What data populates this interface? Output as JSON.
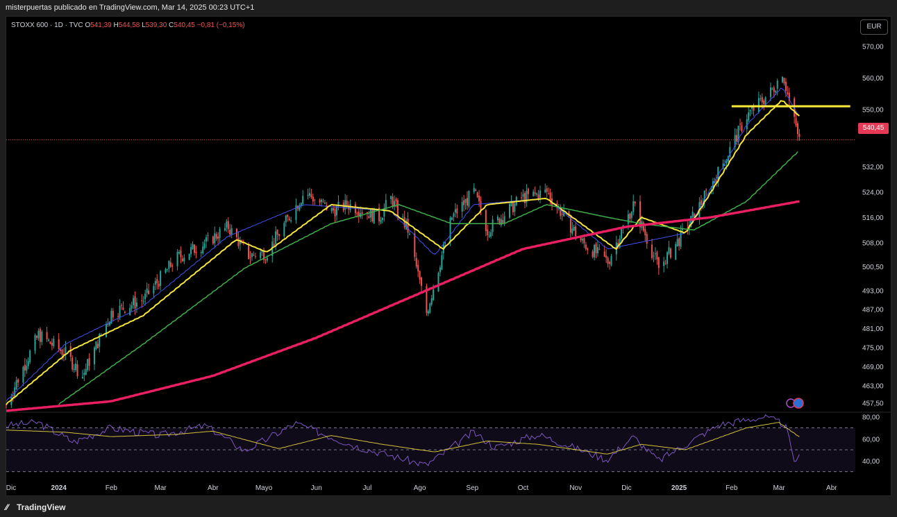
{
  "header": {
    "publisher_line": "misterpuertas publicado en TradingView.com, Mar 14, 2025 00:23 UTC+1"
  },
  "legend": {
    "symbol": "STOXX 600 · 1D · TVC",
    "o_label": "O",
    "o_value": "541,39",
    "h_label": "H",
    "h_value": "544,58",
    "l_label": "L",
    "l_value": "539,30",
    "c_label": "C",
    "c_value": "540,45",
    "change": "−0,81 (−0,15%)"
  },
  "currency_button": "EUR",
  "footer": {
    "brand": "TradingView"
  },
  "colors": {
    "up": "#26a69a",
    "down": "#ef5350",
    "ma_fast": "#3f51f5",
    "ma_yellow": "#f5e53b",
    "ma_green": "#3fae4a",
    "ma_200": "#e91e63",
    "rsi": "#7e57c2",
    "rsi_ma": "#d4c23a",
    "hline": "#ffeb3b"
  },
  "chart_data": [
    {
      "type": "candlestick",
      "title": "STOXX 600 · 1D · TVC",
      "currency": "EUR",
      "last_price": "540,45",
      "y_ticks": [
        "570,00",
        "560,00",
        "550,00",
        "540,45",
        "532,00",
        "524,00",
        "516,00",
        "508,00",
        "500,50",
        "493,00",
        "487,00",
        "481,00",
        "475,00",
        "469,00",
        "463,00",
        "457,50"
      ],
      "x_ticks": [
        "Dic",
        "2024",
        "Feb",
        "Mar",
        "Abr",
        "Mayo",
        "Jun",
        "Jul",
        "Ago",
        "Sep",
        "Oct",
        "Nov",
        "Dic",
        "2025",
        "Feb",
        "Mar",
        "Abr"
      ],
      "ylim": [
        455,
        574
      ],
      "date_range": [
        "2023-12-01",
        "2025-03-13"
      ],
      "price_path": [
        {
          "date": "2023-12-01",
          "price": 457
        },
        {
          "date": "2023-12-20",
          "price": 479
        },
        {
          "date": "2024-01-05",
          "price": 473
        },
        {
          "date": "2024-01-15",
          "price": 466
        },
        {
          "date": "2024-02-01",
          "price": 486
        },
        {
          "date": "2024-02-20",
          "price": 490
        },
        {
          "date": "2024-03-10",
          "price": 503
        },
        {
          "date": "2024-03-28",
          "price": 508
        },
        {
          "date": "2024-04-10",
          "price": 513
        },
        {
          "date": "2024-04-22",
          "price": 504
        },
        {
          "date": "2024-05-03",
          "price": 505
        },
        {
          "date": "2024-05-25",
          "price": 524
        },
        {
          "date": "2024-06-10",
          "price": 518
        },
        {
          "date": "2024-06-20",
          "price": 520
        },
        {
          "date": "2024-07-08",
          "price": 516
        },
        {
          "date": "2024-07-15",
          "price": 522
        },
        {
          "date": "2024-07-25",
          "price": 512
        },
        {
          "date": "2024-08-05",
          "price": 486
        },
        {
          "date": "2024-08-20",
          "price": 516
        },
        {
          "date": "2024-09-02",
          "price": 524
        },
        {
          "date": "2024-09-10",
          "price": 512
        },
        {
          "date": "2024-09-30",
          "price": 522
        },
        {
          "date": "2024-10-15",
          "price": 524
        },
        {
          "date": "2024-11-05",
          "price": 508
        },
        {
          "date": "2024-11-20",
          "price": 502
        },
        {
          "date": "2024-12-05",
          "price": 520
        },
        {
          "date": "2024-12-20",
          "price": 500
        },
        {
          "date": "2025-01-05",
          "price": 512
        },
        {
          "date": "2025-01-25",
          "price": 531
        },
        {
          "date": "2025-02-10",
          "price": 548
        },
        {
          "date": "2025-02-25",
          "price": 556
        },
        {
          "date": "2025-03-03",
          "price": 562
        },
        {
          "date": "2025-03-08",
          "price": 550
        },
        {
          "date": "2025-03-13",
          "price": 540.45
        }
      ],
      "moving_averages": [
        {
          "color": "#3f51f5",
          "points": [
            {
              "date": "2023-12-01",
              "price": 458
            },
            {
              "date": "2024-01-05",
              "price": 476
            },
            {
              "date": "2024-02-20",
              "price": 488
            },
            {
              "date": "2024-04-10",
              "price": 510
            },
            {
              "date": "2024-05-25",
              "price": 520
            },
            {
              "date": "2024-07-15",
              "price": 518
            },
            {
              "date": "2024-08-10",
              "price": 504
            },
            {
              "date": "2024-09-02",
              "price": 520
            },
            {
              "date": "2024-10-15",
              "price": 522
            },
            {
              "date": "2024-11-20",
              "price": 506
            },
            {
              "date": "2025-01-05",
              "price": 511
            },
            {
              "date": "2025-02-10",
              "price": 545
            },
            {
              "date": "2025-03-03",
              "price": 557
            },
            {
              "date": "2025-03-13",
              "price": 548
            }
          ]
        },
        {
          "color": "#f5e53b",
          "points": [
            {
              "date": "2023-12-01",
              "price": 457
            },
            {
              "date": "2024-01-08",
              "price": 474
            },
            {
              "date": "2024-02-20",
              "price": 485
            },
            {
              "date": "2024-04-15",
              "price": 509
            },
            {
              "date": "2024-05-03",
              "price": 505
            },
            {
              "date": "2024-06-10",
              "price": 520
            },
            {
              "date": "2024-07-15",
              "price": 518
            },
            {
              "date": "2024-08-15",
              "price": 506
            },
            {
              "date": "2024-09-10",
              "price": 520
            },
            {
              "date": "2024-10-15",
              "price": 522
            },
            {
              "date": "2024-11-25",
              "price": 506
            },
            {
              "date": "2024-12-10",
              "price": 516
            },
            {
              "date": "2025-01-05",
              "price": 511
            },
            {
              "date": "2025-02-10",
              "price": 542
            },
            {
              "date": "2025-03-03",
              "price": 553
            },
            {
              "date": "2025-03-13",
              "price": 548
            }
          ]
        },
        {
          "color": "#3fae4a",
          "points": [
            {
              "date": "2024-01-01",
              "price": 457
            },
            {
              "date": "2024-02-20",
              "price": 476
            },
            {
              "date": "2024-04-20",
              "price": 500
            },
            {
              "date": "2024-06-10",
              "price": 514
            },
            {
              "date": "2024-07-20",
              "price": 520
            },
            {
              "date": "2024-08-20",
              "price": 514
            },
            {
              "date": "2024-09-20",
              "price": 514
            },
            {
              "date": "2024-10-15",
              "price": 520
            },
            {
              "date": "2024-11-20",
              "price": 516
            },
            {
              "date": "2024-12-10",
              "price": 514
            },
            {
              "date": "2025-01-10",
              "price": 512
            },
            {
              "date": "2025-02-10",
              "price": 521
            },
            {
              "date": "2025-03-13",
              "price": 537
            }
          ]
        },
        {
          "color": "#e91e63",
          "points": [
            {
              "date": "2023-12-01",
              "price": 455
            },
            {
              "date": "2024-02-01",
              "price": 458
            },
            {
              "date": "2024-04-01",
              "price": 466
            },
            {
              "date": "2024-06-01",
              "price": 478
            },
            {
              "date": "2024-08-01",
              "price": 492
            },
            {
              "date": "2024-10-01",
              "price": 506
            },
            {
              "date": "2024-12-01",
              "price": 513
            },
            {
              "date": "2025-01-20",
              "price": 516
            },
            {
              "date": "2025-03-13",
              "price": 521
            }
          ]
        }
      ],
      "horizontal_line": {
        "price": 551,
        "from": "2025-02-01",
        "to": "2025-04-12"
      }
    },
    {
      "type": "line",
      "title": "RSI",
      "y_ticks": [
        "80,00",
        "60,00",
        "40,00"
      ],
      "ylim": [
        26,
        83
      ],
      "bands": [
        70,
        50,
        30
      ],
      "series": [
        {
          "points": [
            {
              "date": "2023-12-01",
              "value": 72
            },
            {
              "date": "2023-12-20",
              "value": 75
            },
            {
              "date": "2024-01-10",
              "value": 57
            },
            {
              "date": "2024-02-01",
              "value": 70
            },
            {
              "date": "2024-03-01",
              "value": 63
            },
            {
              "date": "2024-03-28",
              "value": 72
            },
            {
              "date": "2024-04-20",
              "value": 49
            },
            {
              "date": "2024-05-20",
              "value": 74
            },
            {
              "date": "2024-06-25",
              "value": 53
            },
            {
              "date": "2024-08-05",
              "value": 36
            },
            {
              "date": "2024-09-02",
              "value": 66
            },
            {
              "date": "2024-09-15",
              "value": 52
            },
            {
              "date": "2024-10-10",
              "value": 64
            },
            {
              "date": "2024-11-20",
              "value": 41
            },
            {
              "date": "2024-12-05",
              "value": 62
            },
            {
              "date": "2024-12-20",
              "value": 40
            },
            {
              "date": "2025-01-25",
              "value": 73
            },
            {
              "date": "2025-02-20",
              "value": 80
            },
            {
              "date": "2025-03-05",
              "value": 73
            },
            {
              "date": "2025-03-10",
              "value": 40
            },
            {
              "date": "2025-03-13",
              "value": 43
            }
          ]
        },
        {
          "points": [
            {
              "date": "2023-12-01",
              "value": 68
            },
            {
              "date": "2024-01-05",
              "value": 66
            },
            {
              "date": "2024-02-01",
              "value": 62
            },
            {
              "date": "2024-03-10",
              "value": 64
            },
            {
              "date": "2024-04-01",
              "value": 67
            },
            {
              "date": "2024-05-10",
              "value": 51
            },
            {
              "date": "2024-06-10",
              "value": 63
            },
            {
              "date": "2024-07-10",
              "value": 55
            },
            {
              "date": "2024-08-10",
              "value": 48
            },
            {
              "date": "2024-09-10",
              "value": 58
            },
            {
              "date": "2024-10-10",
              "value": 55
            },
            {
              "date": "2024-11-20",
              "value": 46
            },
            {
              "date": "2024-12-10",
              "value": 55
            },
            {
              "date": "2025-01-05",
              "value": 50
            },
            {
              "date": "2025-02-10",
              "value": 70
            },
            {
              "date": "2025-03-01",
              "value": 75
            },
            {
              "date": "2025-03-13",
              "value": 62
            }
          ]
        }
      ]
    }
  ]
}
